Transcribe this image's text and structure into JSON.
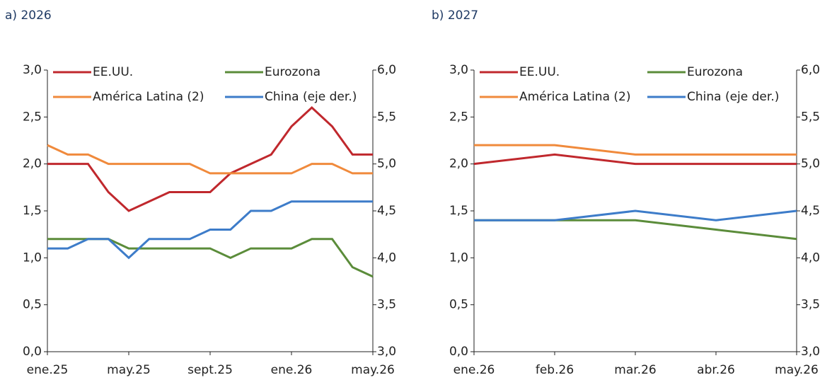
{
  "chart_data": [
    {
      "type": "line",
      "title": "a) 2026",
      "categories": [
        "ene.25",
        null,
        null,
        null,
        "may.25",
        null,
        null,
        null,
        "sept.25",
        null,
        null,
        null,
        "ene.26",
        null,
        null,
        null,
        "may.26"
      ],
      "ylim": [
        0,
        3
      ],
      "yticks": [
        {
          "value": 0,
          "label": "0,0"
        },
        {
          "value": 0.5,
          "label": "0,5"
        },
        {
          "value": 1,
          "label": "1,0"
        },
        {
          "value": 1.5,
          "label": "1,5"
        },
        {
          "value": 2,
          "label": "2,0"
        },
        {
          "value": 2.5,
          "label": "2,5"
        },
        {
          "value": 3,
          "label": "3,0"
        }
      ],
      "y2lim": [
        3,
        6
      ],
      "y2ticks": [
        {
          "value": 3,
          "label": "3,0"
        },
        {
          "value": 3.5,
          "label": "3,5"
        },
        {
          "value": 4,
          "label": "4,0"
        },
        {
          "value": 4.5,
          "label": "4,5"
        },
        {
          "value": 5,
          "label": "5,0"
        },
        {
          "value": 5.5,
          "label": "5,5"
        },
        {
          "value": 6,
          "label": "6,0"
        }
      ],
      "series": [
        {
          "name": "EE.UU.",
          "color": "#c0282d",
          "values": [
            2.0,
            2.0,
            2.0,
            1.7,
            1.5,
            1.6,
            1.7,
            1.7,
            1.7,
            1.9,
            2.0,
            2.1,
            2.4,
            2.6,
            2.4,
            2.1,
            2.1
          ]
        },
        {
          "name": "Eurozona",
          "color": "#5b8c3a",
          "values": [
            1.2,
            1.2,
            1.2,
            1.2,
            1.1,
            1.1,
            1.1,
            1.1,
            1.1,
            1.0,
            1.1,
            1.1,
            1.1,
            1.2,
            1.2,
            0.9,
            0.8
          ]
        },
        {
          "name": "América Latina (2)",
          "color": "#f08a3c",
          "values": [
            2.2,
            2.1,
            2.1,
            2.0,
            2.0,
            2.0,
            2.0,
            2.0,
            1.9,
            1.9,
            1.9,
            1.9,
            1.9,
            2.0,
            2.0,
            1.9,
            1.9
          ]
        },
        {
          "name": "China (eje der.)",
          "color": "#3d7cc9",
          "axis": "y2",
          "values": [
            4.1,
            4.1,
            4.2,
            4.2,
            4.0,
            4.2,
            4.2,
            4.2,
            4.3,
            4.3,
            4.5,
            4.5,
            4.6,
            4.6,
            4.6,
            4.6,
            4.6
          ]
        }
      ]
    },
    {
      "type": "line",
      "title": "b) 2027",
      "categories": [
        "ene.26",
        "feb.26",
        "mar.26",
        "abr.26",
        "may.26"
      ],
      "ylim": [
        0,
        3
      ],
      "yticks": [
        {
          "value": 0,
          "label": "0,0"
        },
        {
          "value": 0.5,
          "label": "0,5"
        },
        {
          "value": 1,
          "label": "1,0"
        },
        {
          "value": 1.5,
          "label": "1,5"
        },
        {
          "value": 2,
          "label": "2,0"
        },
        {
          "value": 2.5,
          "label": "2,5"
        },
        {
          "value": 3,
          "label": "3,0"
        }
      ],
      "y2lim": [
        3,
        6
      ],
      "y2ticks": [
        {
          "value": 3,
          "label": "3,0"
        },
        {
          "value": 3.5,
          "label": "3,5"
        },
        {
          "value": 4,
          "label": "4,0"
        },
        {
          "value": 4.5,
          "label": "4,5"
        },
        {
          "value": 5,
          "label": "5,0"
        },
        {
          "value": 5.5,
          "label": "5,5"
        },
        {
          "value": 6,
          "label": "6,0"
        }
      ],
      "series": [
        {
          "name": "EE.UU.",
          "color": "#c0282d",
          "values": [
            2.0,
            2.1,
            2.0,
            2.0,
            2.0
          ]
        },
        {
          "name": "Eurozona",
          "color": "#5b8c3a",
          "values": [
            1.4,
            1.4,
            1.4,
            1.3,
            1.2
          ]
        },
        {
          "name": "América Latina (2)",
          "color": "#f08a3c",
          "values": [
            2.2,
            2.2,
            2.1,
            2.1,
            2.1
          ]
        },
        {
          "name": "China (eje der.)",
          "color": "#3d7cc9",
          "axis": "y2",
          "values": [
            4.4,
            4.4,
            4.5,
            4.4,
            4.5
          ]
        }
      ]
    }
  ]
}
